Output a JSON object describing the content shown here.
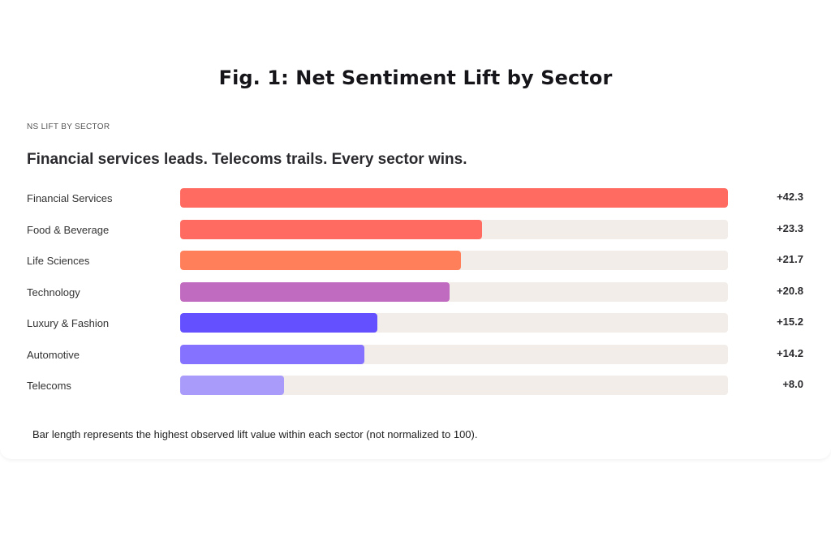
{
  "title": "Fig. 1: Net Sentiment Lift by Sector",
  "eyebrow": "NS LIFT BY SECTOR",
  "headline": "Financial services leads. Telecoms trails. Every sector wins.",
  "footnote": "Bar length represents the highest observed lift value within each sector (not normalized to 100).",
  "chart_data": {
    "type": "bar",
    "orientation": "horizontal",
    "title": "Fig. 1: Net Sentiment Lift by Sector",
    "xlim": [
      0,
      42.3
    ],
    "categories": [
      "Financial Services",
      "Food & Beverage",
      "Life Sciences",
      "Technology",
      "Luxury & Fashion",
      "Automotive",
      "Telecoms"
    ],
    "values": [
      42.3,
      23.3,
      21.7,
      20.8,
      15.2,
      14.2,
      8.0
    ],
    "value_labels": [
      "+42.3",
      "+23.3",
      "+21.7",
      "+20.8",
      "+15.2",
      "+14.2",
      "+8.0"
    ],
    "colors": [
      "#ff6b61",
      "#ff6b61",
      "#ff7f5a",
      "#c06ac0",
      "#6450ff",
      "#8573ff",
      "#a99bfa"
    ],
    "track_color": "#f2ede8"
  }
}
